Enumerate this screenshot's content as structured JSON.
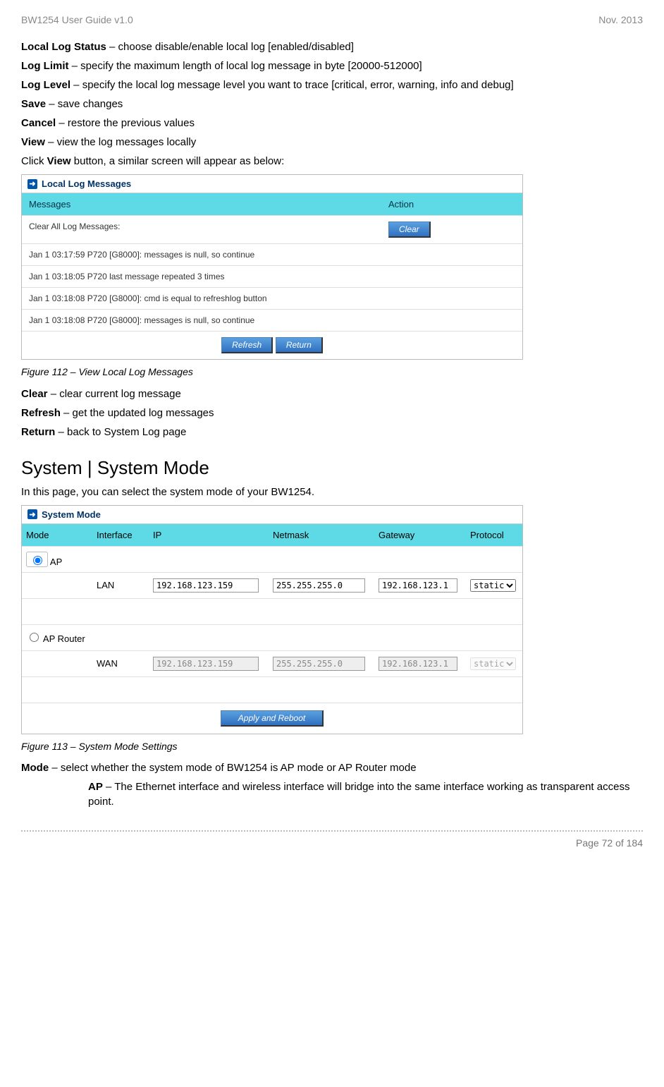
{
  "header": {
    "left": "BW1254 User Guide v1.0",
    "right": "Nov.  2013"
  },
  "intro": {
    "lls": {
      "term": "Local Log Status",
      "desc": " – choose disable/enable local log [enabled/disabled]"
    },
    "ll": {
      "term": "Log Limit",
      "desc": " – specify the maximum length of local log message in byte [20000-512000]"
    },
    "lv": {
      "term": "Log Level",
      "desc": " – specify the local log message level you want to trace [critical, error, warning, info and debug]"
    },
    "sv": {
      "term": "Save",
      "desc": " – save changes"
    },
    "cn": {
      "term": "Cancel",
      "desc": " – restore the previous values"
    },
    "vw": {
      "term": "View",
      "desc": " – view the log messages locally"
    },
    "click_pre": "Click ",
    "click_bold": "View",
    "click_post": " button, a similar screen will appear as below:"
  },
  "log_panel": {
    "title": "Local Log Messages",
    "col_msg": "Messages",
    "col_act": "Action",
    "row_clear": "Clear All Log Messages:",
    "btn_clear": "Clear",
    "rows": [
      "Jan 1 03:17:59 P720 [G8000]: messages is null, so continue",
      "Jan 1 03:18:05 P720 last message repeated 3 times",
      "Jan 1 03:18:08 P720 [G8000]: cmd is equal to refreshlog button",
      "Jan 1 03:18:08 P720 [G8000]: messages is null, so continue"
    ],
    "btn_refresh": "Refresh",
    "btn_return": "Return"
  },
  "fig1": "Figure 112 – View Local Log Messages",
  "after1": {
    "cl": {
      "term": "Clear",
      "desc": " – clear current log message"
    },
    "rf": {
      "term": "Refresh",
      "desc": " – get the updated log messages"
    },
    "rt": {
      "term": "Return",
      "desc": " – back to System Log page"
    }
  },
  "section": "System | System Mode",
  "section_p": "In this page, you can select the system mode of your BW1254.",
  "sm_panel": {
    "title": "System Mode",
    "h_mode": "Mode",
    "h_if": "Interface",
    "h_ip": "IP",
    "h_nm": "Netmask",
    "h_gw": "Gateway",
    "h_pr": "Protocol",
    "ap_label": "AP",
    "apr_label": "AP Router",
    "lan": "LAN",
    "wan": "WAN",
    "ip1": "192.168.123.159",
    "nm1": "255.255.255.0",
    "gw1": "192.168.123.1",
    "ip2": "192.168.123.159",
    "nm2": "255.255.255.0",
    "gw2": "192.168.123.1",
    "proto": "static",
    "btn_apply": "Apply and Reboot"
  },
  "fig2": "Figure 113 – System Mode Settings",
  "after2": {
    "mode": {
      "term": "Mode",
      "desc": " – select whether the system mode of BW1254 is AP mode or AP Router mode"
    },
    "ap": {
      "term": "AP",
      "desc": " – The Ethernet interface and wireless interface will bridge into the same interface working as transparent access point."
    }
  },
  "footer": "Page 72 of 184"
}
